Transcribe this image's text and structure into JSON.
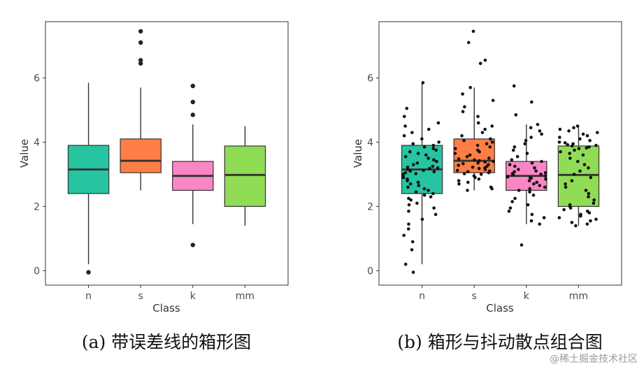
{
  "chart_data": [
    {
      "type": "box",
      "caption": "(a)  带误差线的箱形图",
      "xlabel": "Class",
      "ylabel": "Value",
      "ylim": [
        -0.45,
        7.75
      ],
      "yticks": [
        0,
        2,
        4,
        6
      ],
      "categories": [
        "n",
        "s",
        "k",
        "mm"
      ],
      "colors": [
        "#26c4a1",
        "#ff7e46",
        "#fb86c5",
        "#90dd55"
      ],
      "boxes": [
        {
          "whisker_low": 0.2,
          "q1": 2.4,
          "median": 3.15,
          "q3": 3.9,
          "whisker_high": 5.85,
          "outliers": [
            -0.05
          ]
        },
        {
          "whisker_low": 2.5,
          "q1": 3.05,
          "median": 3.42,
          "q3": 4.1,
          "whisker_high": 5.7,
          "outliers": [
            6.45,
            6.55,
            7.1,
            7.45
          ]
        },
        {
          "whisker_low": 1.45,
          "q1": 2.5,
          "median": 2.95,
          "q3": 3.4,
          "whisker_high": 4.55,
          "outliers": [
            0.8,
            4.85,
            5.25,
            5.75
          ]
        },
        {
          "whisker_low": 1.4,
          "q1": 2.0,
          "median": 2.98,
          "q3": 3.88,
          "whisker_high": 4.5,
          "outliers": []
        }
      ],
      "grid": false
    },
    {
      "type": "box",
      "caption": "(b)  箱形与抖动散点组合图",
      "xlabel": "Class",
      "ylabel": "Value",
      "ylim": [
        -0.45,
        7.75
      ],
      "yticks": [
        0,
        2,
        4,
        6
      ],
      "categories": [
        "n",
        "s",
        "k",
        "mm"
      ],
      "colors": [
        "#26c4a1",
        "#ff7e46",
        "#fb86c5",
        "#90dd55"
      ],
      "boxes": [
        {
          "whisker_low": 0.2,
          "q1": 2.4,
          "median": 3.15,
          "q3": 3.9,
          "whisker_high": 5.85,
          "outliers": []
        },
        {
          "whisker_low": 2.5,
          "q1": 3.05,
          "median": 3.42,
          "q3": 4.1,
          "whisker_high": 5.7,
          "outliers": []
        },
        {
          "whisker_low": 1.45,
          "q1": 2.5,
          "median": 2.95,
          "q3": 3.4,
          "whisker_high": 4.55,
          "outliers": []
        },
        {
          "whisker_low": 1.4,
          "q1": 2.0,
          "median": 2.98,
          "q3": 3.88,
          "whisker_high": 4.5,
          "outliers": []
        }
      ],
      "jitter_points": {
        "n": [
          -0.05,
          0.2,
          0.65,
          0.9,
          1.1,
          1.3,
          1.45,
          1.6,
          1.75,
          1.85,
          1.95,
          2.05,
          2.1,
          2.2,
          2.25,
          2.3,
          2.35,
          2.4,
          2.45,
          2.5,
          2.55,
          2.6,
          2.65,
          2.7,
          2.75,
          2.8,
          2.85,
          2.9,
          2.95,
          3.0,
          3.02,
          3.05,
          3.08,
          3.1,
          3.12,
          3.15,
          3.18,
          3.2,
          3.22,
          3.25,
          3.3,
          3.35,
          3.4,
          3.45,
          3.5,
          3.55,
          3.6,
          3.65,
          3.7,
          3.75,
          3.8,
          3.85,
          3.9,
          3.95,
          4.0,
          4.1,
          4.2,
          4.3,
          4.4,
          4.5,
          4.6,
          4.8,
          5.05,
          5.85
        ],
        "s": [
          2.5,
          2.55,
          2.6,
          2.7,
          2.75,
          2.8,
          2.85,
          2.9,
          2.95,
          3.0,
          3.02,
          3.05,
          3.08,
          3.1,
          3.12,
          3.15,
          3.18,
          3.2,
          3.22,
          3.25,
          3.28,
          3.3,
          3.33,
          3.35,
          3.38,
          3.4,
          3.42,
          3.45,
          3.48,
          3.5,
          3.55,
          3.6,
          3.65,
          3.7,
          3.75,
          3.8,
          3.85,
          3.9,
          3.95,
          4.0,
          4.05,
          4.1,
          4.2,
          4.3,
          4.4,
          4.5,
          4.6,
          4.8,
          4.95,
          5.1,
          5.3,
          5.5,
          5.7,
          6.45,
          6.55,
          7.1,
          7.45
        ],
        "k": [
          0.8,
          1.45,
          1.55,
          1.65,
          1.75,
          1.85,
          1.95,
          2.05,
          2.15,
          2.25,
          2.35,
          2.45,
          2.5,
          2.55,
          2.6,
          2.65,
          2.7,
          2.75,
          2.8,
          2.85,
          2.88,
          2.9,
          2.92,
          2.95,
          2.98,
          3.0,
          3.02,
          3.05,
          3.08,
          3.1,
          3.15,
          3.2,
          3.25,
          3.3,
          3.35,
          3.4,
          3.45,
          3.55,
          3.65,
          3.75,
          3.85,
          3.95,
          4.05,
          4.15,
          4.25,
          4.35,
          4.45,
          4.55,
          4.85,
          5.25,
          5.75
        ],
        "mm": [
          1.4,
          1.45,
          1.5,
          1.55,
          1.6,
          1.65,
          1.7,
          1.75,
          1.8,
          1.85,
          1.9,
          1.95,
          2.0,
          2.05,
          2.1,
          2.2,
          2.3,
          2.4,
          2.5,
          2.6,
          2.7,
          2.8,
          2.9,
          3.0,
          3.1,
          3.2,
          3.3,
          3.4,
          3.5,
          3.6,
          3.65,
          3.7,
          3.75,
          3.8,
          3.82,
          3.85,
          3.88,
          3.9,
          3.92,
          3.95,
          3.98,
          4.0,
          4.05,
          4.1,
          4.15,
          4.2,
          4.25,
          4.3,
          4.35,
          4.4,
          4.45,
          4.5
        ]
      },
      "grid": false
    }
  ],
  "watermark": "@稀土掘金技术社区"
}
